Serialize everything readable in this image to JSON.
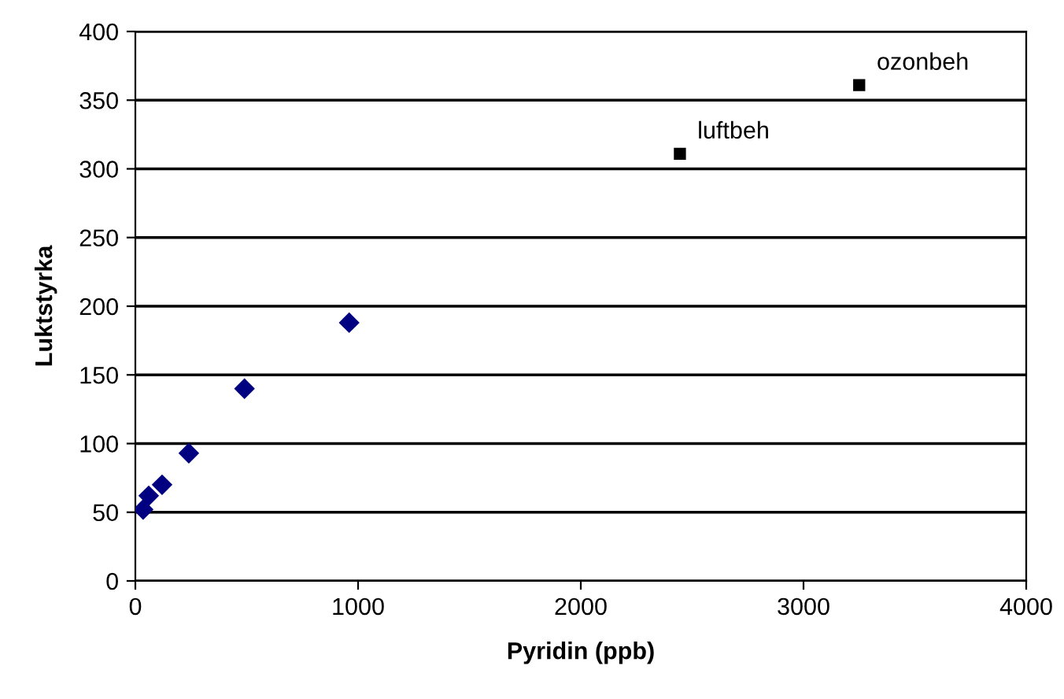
{
  "chart_data": {
    "type": "scatter",
    "xlabel": "Pyridin (ppb)",
    "ylabel": "Luktstyrka",
    "series": [
      {
        "color": "#000080",
        "marker": "diamond",
        "x": [
          35,
          60,
          120,
          240,
          490,
          960
        ],
        "values": [
          52,
          62,
          70,
          93,
          140,
          188
        ]
      },
      {
        "color": "#000000",
        "marker": "square",
        "x": [
          2445,
          3250
        ],
        "values": [
          311,
          361
        ]
      }
    ],
    "annotations": [
      {
        "text": "luftbeh",
        "x": 2445,
        "y": 311
      },
      {
        "text": "ozonbeh",
        "x": 3250,
        "y": 361
      }
    ],
    "xlim": [
      0,
      4000
    ],
    "xticks": [
      0,
      1000,
      2000,
      3000,
      4000
    ],
    "ylim": [
      0,
      400
    ],
    "yticks": [
      0,
      50,
      100,
      150,
      200,
      250,
      300,
      350,
      400
    ],
    "grid": "y"
  }
}
